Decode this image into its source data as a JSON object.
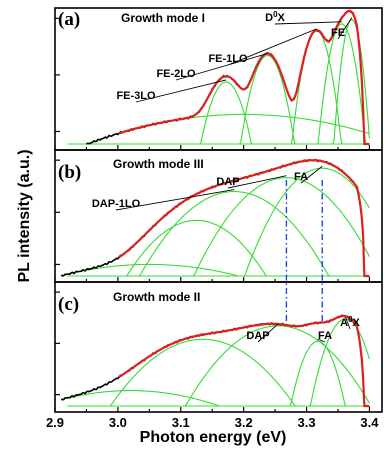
{
  "chart_data": {
    "type": "line",
    "xlabel": "Photon energy (eV)",
    "ylabel": "PL intensity (a.u.)",
    "xlim": [
      2.9,
      3.42
    ],
    "xticks": [
      2.9,
      3.0,
      3.1,
      3.2,
      3.3,
      3.4
    ],
    "xtick_labels": [
      "2.9",
      "3.0",
      "3.1",
      "3.2",
      "3.3",
      "3.4"
    ],
    "colors": {
      "measured": "#000000",
      "fit_sum": "#e02020",
      "components": "#33dd33",
      "guides": "#2244dd"
    },
    "panels": [
      {
        "letter": "(a)",
        "title": "Growth mode I",
        "scale": "log",
        "data_start": 2.95,
        "background": {
          "center": 3.2,
          "sigma": 0.16,
          "amp": 0.02
        },
        "components": [
          {
            "name": "FE-3LO",
            "center": 3.172,
            "sigma": 0.018,
            "amp": 0.075
          },
          {
            "name": "FE-2LO",
            "center": 3.238,
            "sigma": 0.016,
            "amp": 0.22
          },
          {
            "name": "FE-1LO",
            "center": 3.316,
            "sigma": 0.013,
            "amp": 0.6
          },
          {
            "name": "D0X",
            "center": 3.356,
            "sigma": 0.012,
            "amp": 0.8
          },
          {
            "name": "FE",
            "center": 3.372,
            "sigma": 0.009,
            "amp": 0.95
          }
        ],
        "labels": [
          {
            "text": "FE-3LO",
            "x": 3.172
          },
          {
            "text": "FE-2LO",
            "x": 3.238
          },
          {
            "text": "FE-1LO",
            "x": 3.316
          },
          {
            "text": "D",
            "sup": "0",
            "after": "X",
            "x": 3.356
          },
          {
            "text": "FE",
            "x": 3.372
          }
        ]
      },
      {
        "letter": "(b)",
        "title": "Growth mode III",
        "scale": "log",
        "data_start": 2.91,
        "background": {
          "center": 3.05,
          "sigma": 0.14,
          "amp": 0.01
        },
        "components": [
          {
            "name": "DAP-1LO",
            "center": 3.185,
            "sigma": 0.055,
            "amp": 0.25
          },
          {
            "name": "DAP",
            "center": 3.268,
            "sigma": 0.05,
            "amp": 0.46
          },
          {
            "name": "FA",
            "center": 3.325,
            "sigma": 0.04,
            "amp": 0.7
          },
          {
            "name": "",
            "center": 3.125,
            "sigma": 0.05,
            "amp": 0.07
          }
        ],
        "labels": [
          {
            "text": "DAP-1LO",
            "x": 3.185
          },
          {
            "text": "DAP",
            "x": 3.268
          },
          {
            "text": "FA",
            "x": 3.325
          }
        ]
      },
      {
        "letter": "(c)",
        "title": "Growth mode II",
        "scale": "log",
        "data_start": 2.91,
        "background": {
          "center": 3.02,
          "sigma": 0.12,
          "amp": 0.012
        },
        "components": [
          {
            "name": "",
            "center": 3.135,
            "sigma": 0.06,
            "amp": 0.12
          },
          {
            "name": "DAP",
            "center": 3.255,
            "sigma": 0.055,
            "amp": 0.22
          },
          {
            "name": "FA",
            "center": 3.318,
            "sigma": 0.018,
            "amp": 0.11
          },
          {
            "name": "A0X",
            "center": 3.362,
            "sigma": 0.02,
            "amp": 0.3
          }
        ],
        "labels": [
          {
            "text": "DAP",
            "x": 3.255
          },
          {
            "text": "FA",
            "x": 3.318
          },
          {
            "text": "A",
            "sup": "0",
            "after": "X",
            "x": 3.362
          }
        ]
      }
    ],
    "guides": [
      {
        "x": 3.268,
        "from_panel": 1,
        "to_panel": 2
      },
      {
        "x": 3.325,
        "from_panel": 1,
        "to_panel": 2
      }
    ]
  }
}
